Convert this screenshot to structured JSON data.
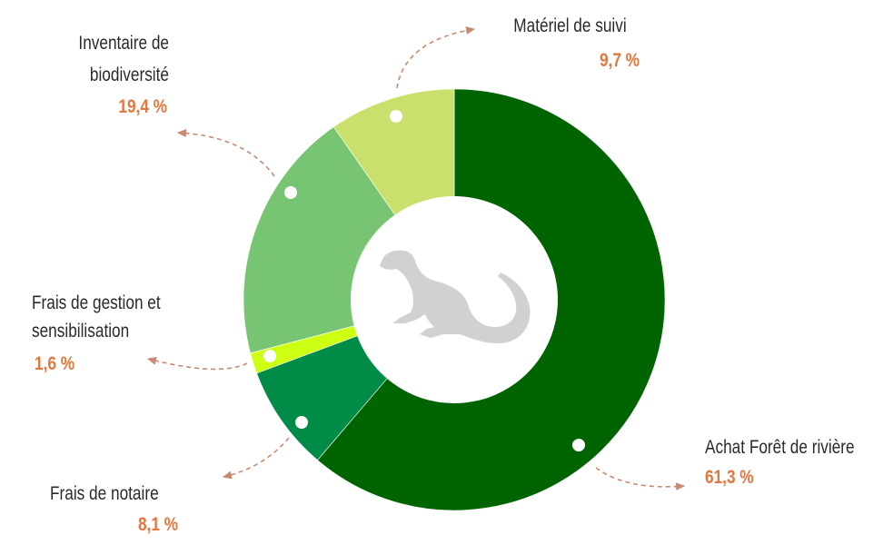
{
  "chart_data": {
    "type": "pie",
    "donut": true,
    "title": "",
    "start": "top",
    "direction": "clockwise",
    "slices": [
      {
        "label": "Achat Forêt de rivière",
        "value": 61.3,
        "value_label": "61,3 %",
        "color": "#006400"
      },
      {
        "label": "Frais de notaire",
        "value": 8.1,
        "value_label": "8,1 %",
        "color": "#008c46"
      },
      {
        "label": "Frais de gestion et sensibilisation",
        "label_lines": [
          "Frais de gestion et",
          "sensibilisation"
        ],
        "value": 1.6,
        "value_label": "1,6 %",
        "color": "#ccff11"
      },
      {
        "label": "Inventaire de biodiversité",
        "label_lines": [
          "Inventaire de",
          "biodiversité"
        ],
        "value": 19.4,
        "value_label": "19,4 %",
        "color": "#77c573"
      },
      {
        "label": "Matériel de suivi",
        "value": 9.7,
        "value_label": "9,7 %",
        "color": "#c9e06c"
      }
    ],
    "center_icon": "otter-icon",
    "center_icon_color": "#d0d1d3",
    "label_color": "#2a2a2a",
    "value_color": "#e2773f",
    "leader_color": "#c98a72"
  }
}
